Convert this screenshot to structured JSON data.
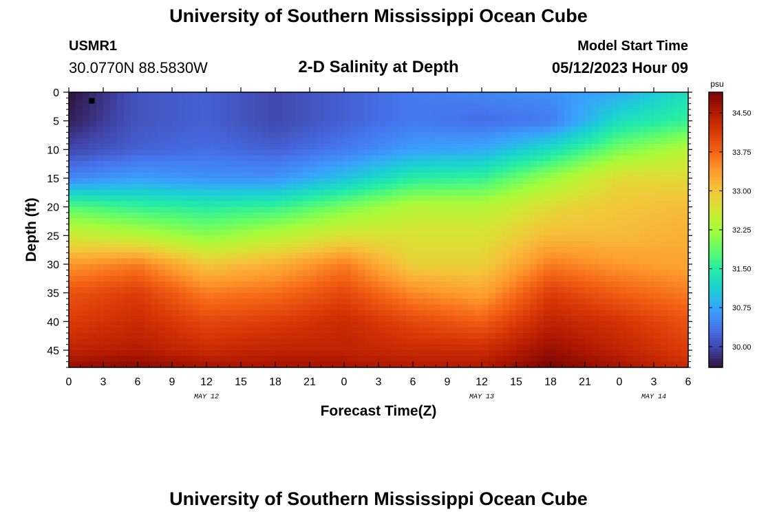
{
  "header": {
    "title": "University of Southern Mississippi Ocean Cube",
    "station_id": "USMR1",
    "coordinates": "30.0770N  88.5830W",
    "model_start_label": "Model Start Time",
    "model_start_value": "05/12/2023 Hour 09"
  },
  "footer": {
    "title": "University of Southern Mississippi Ocean Cube"
  },
  "chart_data": {
    "type": "heatmap",
    "title": "2-D Salinity at Depth",
    "xlabel": "Forecast Time(Z)",
    "ylabel": "Depth (ft)",
    "x_unit": "hours since May 12 00Z",
    "xlim": [
      0,
      54
    ],
    "x_ticks": [
      {
        "hour": 0,
        "label": "0"
      },
      {
        "hour": 3,
        "label": "3"
      },
      {
        "hour": 6,
        "label": "6"
      },
      {
        "hour": 9,
        "label": "9"
      },
      {
        "hour": 12,
        "label": "12"
      },
      {
        "hour": 15,
        "label": "15"
      },
      {
        "hour": 18,
        "label": "18"
      },
      {
        "hour": 21,
        "label": "21"
      },
      {
        "hour": 24,
        "label": "0"
      },
      {
        "hour": 27,
        "label": "3"
      },
      {
        "hour": 30,
        "label": "6"
      },
      {
        "hour": 33,
        "label": "9"
      },
      {
        "hour": 36,
        "label": "12"
      },
      {
        "hour": 39,
        "label": "15"
      },
      {
        "hour": 42,
        "label": "18"
      },
      {
        "hour": 45,
        "label": "21"
      },
      {
        "hour": 48,
        "label": "0"
      },
      {
        "hour": 51,
        "label": "3"
      },
      {
        "hour": 54,
        "label": "6"
      }
    ],
    "date_labels": [
      {
        "hour": 12,
        "label": "MAY 12"
      },
      {
        "hour": 36,
        "label": "MAY 13"
      },
      {
        "hour": 51,
        "label": "MAY 14"
      }
    ],
    "ylim": [
      0,
      48
    ],
    "y_ticks": [
      0,
      5,
      10,
      15,
      20,
      25,
      30,
      35,
      40,
      45
    ],
    "colorbar": {
      "unit": "psu",
      "range": [
        29.6,
        34.9
      ],
      "ticks": [
        "30.00",
        "30.75",
        "31.50",
        "32.25",
        "33.00",
        "33.75",
        "34.50"
      ],
      "colormap": [
        "#30123b",
        "#4145ab",
        "#4675ed",
        "#39a2fc",
        "#1bcfd4",
        "#24eca6",
        "#61fc6c",
        "#a4fc3b",
        "#d1e834",
        "#f3c63a",
        "#fe9b2d",
        "#f36315",
        "#d93806",
        "#b11901",
        "#7a0403"
      ]
    },
    "times": [
      0,
      6,
      12,
      18,
      24,
      30,
      36,
      42,
      48,
      54
    ],
    "depths": [
      0,
      5,
      10,
      15,
      20,
      25,
      30,
      35,
      40,
      45,
      48
    ],
    "values": [
      [
        29.6,
        30.1,
        30.2,
        30.0,
        30.2,
        30.4,
        30.5,
        30.6,
        30.8,
        31.3
      ],
      [
        29.7,
        30.1,
        30.2,
        30.0,
        30.2,
        30.4,
        30.3,
        30.4,
        31.3,
        31.6
      ],
      [
        30.0,
        30.2,
        30.3,
        30.2,
        30.4,
        30.7,
        30.8,
        31.3,
        32.0,
        32.4
      ],
      [
        30.5,
        30.7,
        30.6,
        30.6,
        31.0,
        31.5,
        31.6,
        32.2,
        32.8,
        32.8
      ],
      [
        31.8,
        31.6,
        31.5,
        31.6,
        32.0,
        32.4,
        32.4,
        32.8,
        33.0,
        33.1
      ],
      [
        32.6,
        32.4,
        32.1,
        32.4,
        32.7,
        32.7,
        32.7,
        33.1,
        33.1,
        33.2
      ],
      [
        33.4,
        33.6,
        33.0,
        33.2,
        33.6,
        32.9,
        32.9,
        33.6,
        33.4,
        33.3
      ],
      [
        33.9,
        34.1,
        33.6,
        33.7,
        34.0,
        33.5,
        33.3,
        34.1,
        33.8,
        33.6
      ],
      [
        34.1,
        34.3,
        34.0,
        34.1,
        34.3,
        34.0,
        33.8,
        34.4,
        34.2,
        33.9
      ],
      [
        34.4,
        34.5,
        34.3,
        34.4,
        34.4,
        34.3,
        34.3,
        34.7,
        34.4,
        34.1
      ],
      [
        34.7,
        34.8,
        34.6,
        34.6,
        34.6,
        34.5,
        34.5,
        34.9,
        34.6,
        34.3
      ]
    ],
    "marker": {
      "hour": 2,
      "depth": 1.5
    }
  }
}
